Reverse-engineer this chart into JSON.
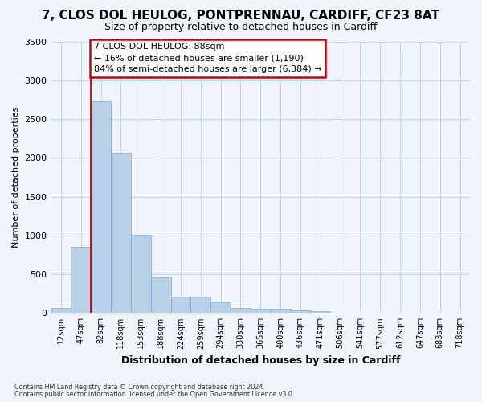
{
  "title_line1": "7, CLOS DOL HEULOG, PONTPRENNAU, CARDIFF, CF23 8AT",
  "title_line2": "Size of property relative to detached houses in Cardiff",
  "xlabel": "Distribution of detached houses by size in Cardiff",
  "ylabel": "Number of detached properties",
  "bar_color": "#b8d0e8",
  "bar_edge_color": "#7aadd4",
  "categories": [
    "12sqm",
    "47sqm",
    "82sqm",
    "118sqm",
    "153sqm",
    "188sqm",
    "224sqm",
    "259sqm",
    "294sqm",
    "330sqm",
    "365sqm",
    "400sqm",
    "436sqm",
    "471sqm",
    "506sqm",
    "541sqm",
    "577sqm",
    "612sqm",
    "647sqm",
    "683sqm",
    "718sqm"
  ],
  "values": [
    65,
    850,
    2730,
    2070,
    1005,
    460,
    215,
    215,
    140,
    65,
    60,
    55,
    30,
    20,
    0,
    0,
    0,
    0,
    0,
    0,
    0
  ],
  "vline_color": "#cc0000",
  "vline_x_idx": 2,
  "annotation_text": "7 CLOS DOL HEULOG: 88sqm\n← 16% of detached houses are smaller (1,190)\n84% of semi-detached houses are larger (6,384) →",
  "annotation_box_facecolor": "#ffffff",
  "annotation_box_edgecolor": "#cc0000",
  "ylim": [
    0,
    3500
  ],
  "yticks": [
    0,
    500,
    1000,
    1500,
    2000,
    2500,
    3000,
    3500
  ],
  "background_color": "#f0f4fb",
  "grid_color": "#c8d8ec",
  "footnote1": "Contains HM Land Registry data © Crown copyright and database right 2024.",
  "footnote2": "Contains public sector information licensed under the Open Government Licence v3.0."
}
